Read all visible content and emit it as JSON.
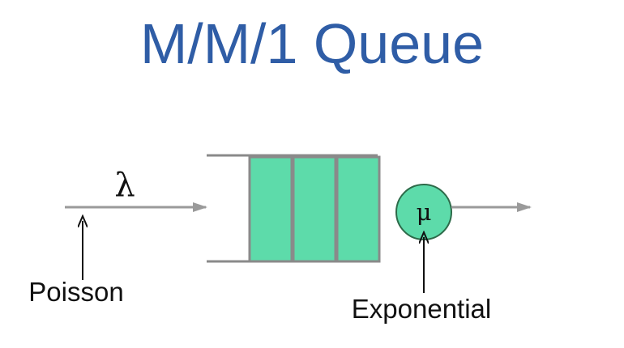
{
  "title": "M/M/1 Queue",
  "arrival": {
    "rate_symbol": "λ",
    "distribution_label": "Poisson"
  },
  "queue": {
    "slots": 3
  },
  "server": {
    "rate_symbol": "μ",
    "distribution_label": "Exponential"
  },
  "colors": {
    "title": "#2f5da6",
    "queue_fill": "#5ddbaa",
    "queue_outline": "#8a8a8a",
    "arrow": "#9a9a9a",
    "server_fill": "#5ddbaa",
    "server_outline": "#2d6a49"
  }
}
